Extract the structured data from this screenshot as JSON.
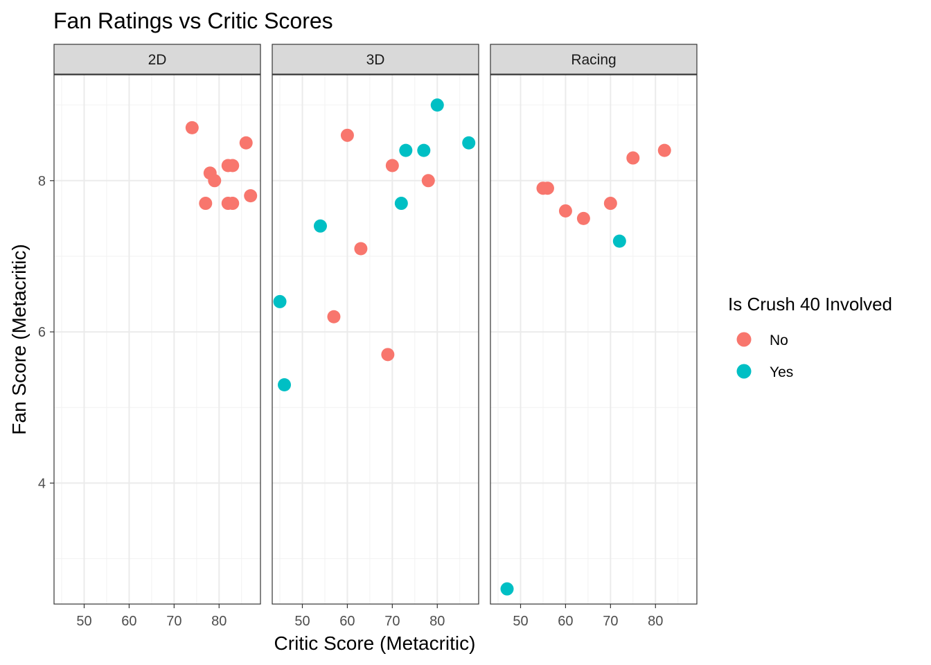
{
  "chart_data": {
    "type": "scatter",
    "title": "Fan Ratings vs Critic Scores",
    "xlabel": "Critic Score (Metacritic)",
    "ylabel": "Fan Score (Metacritic)",
    "xlim": [
      43.3,
      89.2
    ],
    "ylim": [
      2.4,
      9.4
    ],
    "x_ticks": [
      50,
      60,
      70,
      80
    ],
    "y_ticks": [
      4,
      6,
      8
    ],
    "grid": true,
    "legend": {
      "title": "Is Crush 40 Involved",
      "position": "right",
      "entries": [
        {
          "label": "No",
          "color": "#F8766D"
        },
        {
          "label": "Yes",
          "color": "#00BFC4"
        }
      ]
    },
    "facets": [
      {
        "label": "2D",
        "points": [
          {
            "x": 74,
            "y": 8.7,
            "group": "No"
          },
          {
            "x": 78,
            "y": 8.1,
            "group": "No"
          },
          {
            "x": 79,
            "y": 8.0,
            "group": "No"
          },
          {
            "x": 82,
            "y": 8.2,
            "group": "No"
          },
          {
            "x": 83,
            "y": 8.2,
            "group": "No"
          },
          {
            "x": 86,
            "y": 8.5,
            "group": "No"
          },
          {
            "x": 77,
            "y": 7.7,
            "group": "No"
          },
          {
            "x": 82,
            "y": 7.7,
            "group": "No"
          },
          {
            "x": 83,
            "y": 7.7,
            "group": "No"
          },
          {
            "x": 87,
            "y": 7.8,
            "group": "No"
          }
        ]
      },
      {
        "label": "3D",
        "points": [
          {
            "x": 60,
            "y": 8.6,
            "group": "No"
          },
          {
            "x": 70,
            "y": 8.2,
            "group": "No"
          },
          {
            "x": 78,
            "y": 8.0,
            "group": "No"
          },
          {
            "x": 63,
            "y": 7.1,
            "group": "No"
          },
          {
            "x": 57,
            "y": 6.2,
            "group": "No"
          },
          {
            "x": 69,
            "y": 5.7,
            "group": "No"
          },
          {
            "x": 80,
            "y": 9.0,
            "group": "Yes"
          },
          {
            "x": 73,
            "y": 8.4,
            "group": "Yes"
          },
          {
            "x": 77,
            "y": 8.4,
            "group": "Yes"
          },
          {
            "x": 87,
            "y": 8.5,
            "group": "Yes"
          },
          {
            "x": 72,
            "y": 7.7,
            "group": "Yes"
          },
          {
            "x": 54,
            "y": 7.4,
            "group": "Yes"
          },
          {
            "x": 45,
            "y": 6.4,
            "group": "Yes"
          },
          {
            "x": 46,
            "y": 5.3,
            "group": "Yes"
          }
        ]
      },
      {
        "label": "Racing",
        "points": [
          {
            "x": 55,
            "y": 7.9,
            "group": "No"
          },
          {
            "x": 56,
            "y": 7.9,
            "group": "No"
          },
          {
            "x": 60,
            "y": 7.6,
            "group": "No"
          },
          {
            "x": 64,
            "y": 7.5,
            "group": "No"
          },
          {
            "x": 70,
            "y": 7.7,
            "group": "No"
          },
          {
            "x": 75,
            "y": 8.3,
            "group": "No"
          },
          {
            "x": 82,
            "y": 8.4,
            "group": "No"
          },
          {
            "x": 72,
            "y": 7.2,
            "group": "Yes"
          },
          {
            "x": 47,
            "y": 2.6,
            "group": "Yes"
          }
        ]
      }
    ]
  }
}
